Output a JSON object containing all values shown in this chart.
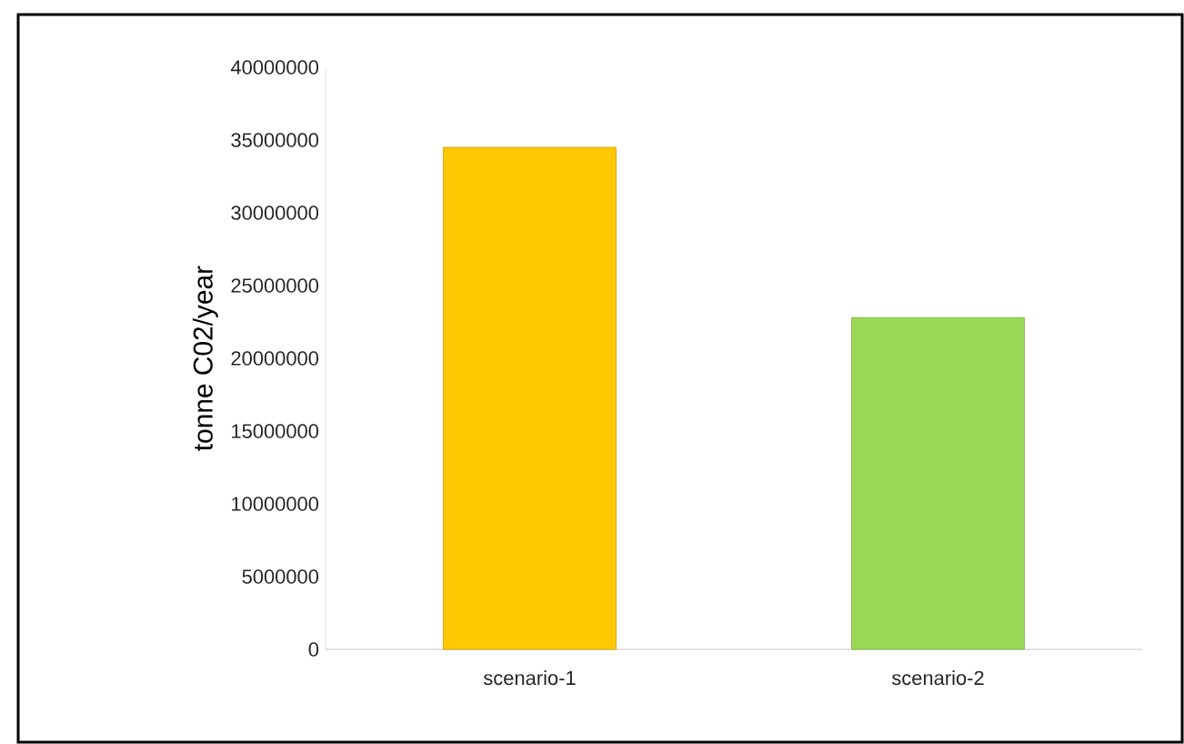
{
  "chart_data": {
    "type": "bar",
    "ylabel": "tonne C02/year",
    "categories": [
      "scenario-1",
      "scenario-2"
    ],
    "values": [
      34500000,
      22800000
    ],
    "colors": [
      "#ffc800",
      "#99d955"
    ],
    "ylim": [
      0,
      40000000
    ],
    "yticks": [
      0,
      5000000,
      10000000,
      15000000,
      20000000,
      25000000,
      30000000,
      35000000,
      40000000
    ],
    "grid": false
  }
}
